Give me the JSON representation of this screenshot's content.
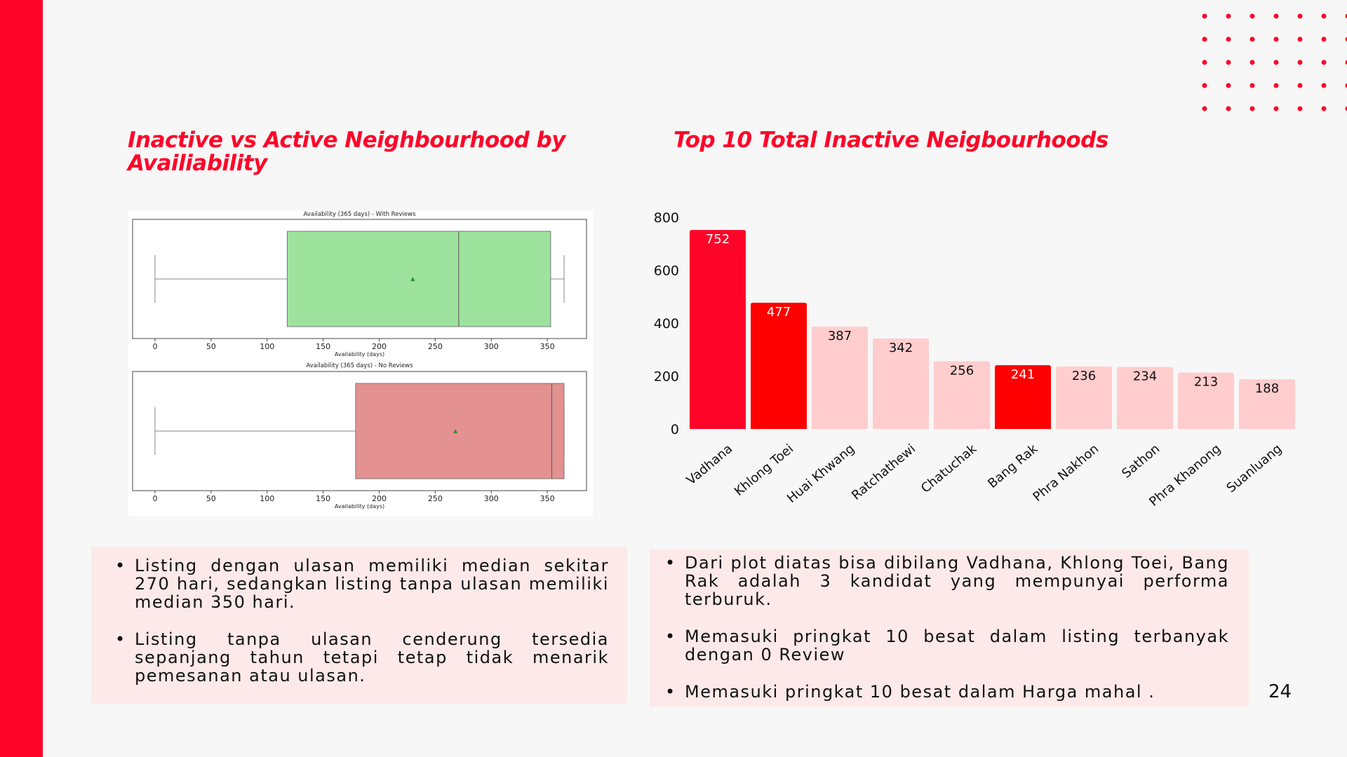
{
  "slide": {
    "left_title": "Inactive vs Active Neighbourhood by Availiability",
    "right_title": "Top 10 Total Inactive Neigbourhoods",
    "page_number": "24",
    "accent_color": "#ff0429"
  },
  "left_bullets": [
    "Listing dengan ulasan memiliki median sekitar 270 hari, sedangkan listing tanpa ulasan memiliki median 350 hari.",
    "Listing tanpa ulasan cenderung tersedia sepanjang tahun tetapi tetap tidak menarik pemesanan atau ulasan."
  ],
  "right_bullets": [
    "Dari plot diatas bisa dibilang Vadhana, Khlong Toei, Bang Rak adalah 3 kandidat yang mempunyai performa terburuk.",
    "Memasuki pringkat 10 besat dalam listing terbanyak dengan 0 Review",
    "Memasuki pringkat 10 besat dalam Harga mahal ."
  ],
  "chart_data": [
    {
      "type": "box",
      "title": "Availability (365 days) - With Reviews",
      "xlabel": "Availability (days)",
      "xticks": [
        0,
        50,
        100,
        150,
        200,
        250,
        300,
        350
      ],
      "xlim": [
        -20,
        385
      ],
      "whisker_low": 0,
      "q1": 118,
      "median": 271,
      "q3": 353,
      "whisker_high": 365,
      "mean": 230,
      "color": "#9de39d"
    },
    {
      "type": "box",
      "title": "Availability (365 days) - No Reviews",
      "xlabel": "Availability (days)",
      "xticks": [
        0,
        50,
        100,
        150,
        200,
        250,
        300,
        350
      ],
      "xlim": [
        -20,
        385
      ],
      "whisker_low": 0,
      "q1": 179,
      "median": 354,
      "q3": 365,
      "whisker_high": 365,
      "mean": 268,
      "color": "#e39191"
    },
    {
      "type": "bar",
      "categories": [
        "Vadhana",
        "Khlong Toei",
        "Huai Khwang",
        "Ratchathewi",
        "Chatuchak",
        "Bang Rak",
        "Phra Nakhon",
        "Sathon",
        "Phra Khanong",
        "Suanluang"
      ],
      "values": [
        752,
        477,
        387,
        342,
        256,
        241,
        236,
        234,
        213,
        188
      ],
      "highlight": [
        true,
        true,
        false,
        false,
        false,
        true,
        false,
        false,
        false,
        false
      ],
      "highlight_colors": [
        "#ff0429",
        "#ff0000",
        "",
        "",
        "",
        "#ff0000",
        "",
        "",
        "",
        ""
      ],
      "base_color": "#ffcdcd",
      "yticks": [
        0,
        200,
        400,
        600,
        800
      ],
      "ylim": [
        0,
        800
      ]
    }
  ]
}
